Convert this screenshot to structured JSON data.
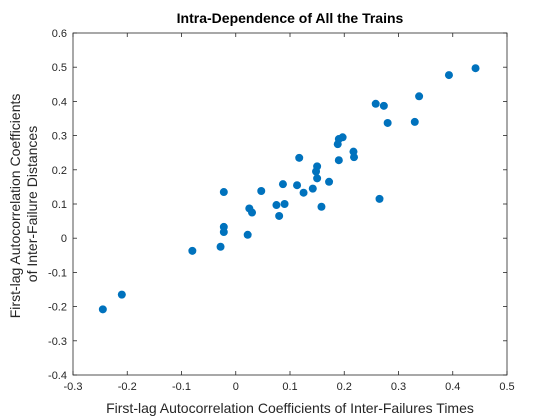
{
  "chart_data": {
    "type": "scatter",
    "title": "Intra-Dependence of All the Trains",
    "xlabel": "First-lag Autocorrelation Coefficients of Inter-Failures Times",
    "ylabel_lines": [
      "First-lag Autocorrelation Coefficients",
      "of Inter-Failure Distances"
    ],
    "xlim": [
      -0.3,
      0.5
    ],
    "ylim": [
      -0.4,
      0.6
    ],
    "xticks": [
      -0.3,
      -0.2,
      -0.1,
      0,
      0.1,
      0.2,
      0.3,
      0.4,
      0.5
    ],
    "xtick_labels": [
      "-0.3",
      "-0.2",
      "-0.1",
      "0",
      "0.1",
      "0.2",
      "0.3",
      "0.4",
      "0.5"
    ],
    "yticks": [
      -0.4,
      -0.3,
      -0.2,
      -0.1,
      0,
      0.1,
      0.2,
      0.3,
      0.4,
      0.5,
      0.6
    ],
    "ytick_labels": [
      "-0.4",
      "-0.3",
      "-0.2",
      "-0.1",
      "0",
      "0.1",
      "0.2",
      "0.3",
      "0.4",
      "0.5",
      "0.6"
    ],
    "grid": false,
    "marker_color": "#0072BD",
    "points": [
      {
        "x": -0.245,
        "y": -0.208
      },
      {
        "x": -0.21,
        "y": -0.165
      },
      {
        "x": -0.08,
        "y": -0.037
      },
      {
        "x": -0.028,
        "y": -0.025
      },
      {
        "x": -0.022,
        "y": 0.135
      },
      {
        "x": -0.022,
        "y": 0.033
      },
      {
        "x": -0.022,
        "y": 0.018
      },
      {
        "x": 0.022,
        "y": 0.01
      },
      {
        "x": 0.025,
        "y": 0.087
      },
      {
        "x": 0.03,
        "y": 0.075
      },
      {
        "x": 0.047,
        "y": 0.138
      },
      {
        "x": 0.075,
        "y": 0.097
      },
      {
        "x": 0.08,
        "y": 0.065
      },
      {
        "x": 0.087,
        "y": 0.158
      },
      {
        "x": 0.09,
        "y": 0.1
      },
      {
        "x": 0.113,
        "y": 0.155
      },
      {
        "x": 0.117,
        "y": 0.235
      },
      {
        "x": 0.125,
        "y": 0.133
      },
      {
        "x": 0.142,
        "y": 0.145
      },
      {
        "x": 0.148,
        "y": 0.195
      },
      {
        "x": 0.15,
        "y": 0.175
      },
      {
        "x": 0.15,
        "y": 0.21
      },
      {
        "x": 0.158,
        "y": 0.092
      },
      {
        "x": 0.172,
        "y": 0.165
      },
      {
        "x": 0.188,
        "y": 0.275
      },
      {
        "x": 0.19,
        "y": 0.29
      },
      {
        "x": 0.19,
        "y": 0.228
      },
      {
        "x": 0.197,
        "y": 0.295
      },
      {
        "x": 0.217,
        "y": 0.253
      },
      {
        "x": 0.218,
        "y": 0.237
      },
      {
        "x": 0.258,
        "y": 0.393
      },
      {
        "x": 0.265,
        "y": 0.115
      },
      {
        "x": 0.273,
        "y": 0.387
      },
      {
        "x": 0.28,
        "y": 0.337
      },
      {
        "x": 0.33,
        "y": 0.34
      },
      {
        "x": 0.338,
        "y": 0.415
      },
      {
        "x": 0.393,
        "y": 0.477
      },
      {
        "x": 0.442,
        "y": 0.497
      }
    ]
  }
}
